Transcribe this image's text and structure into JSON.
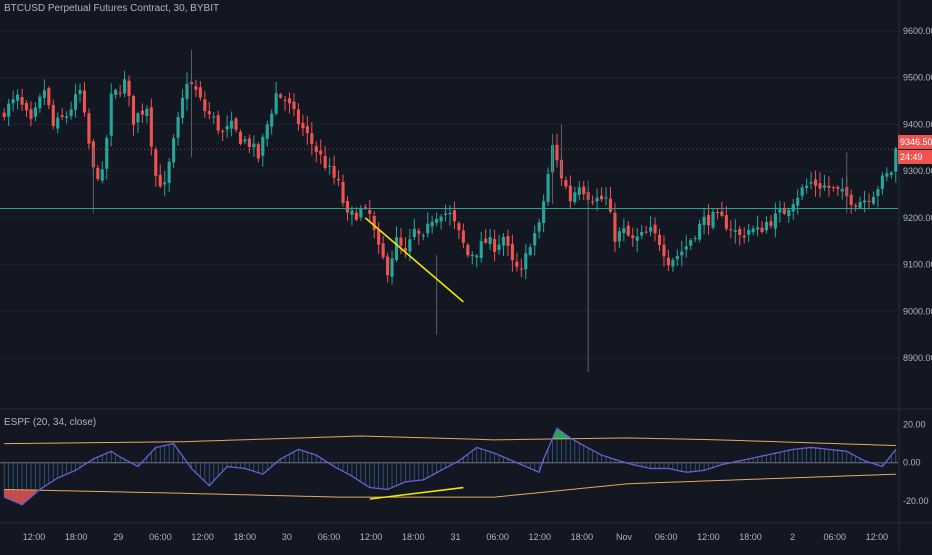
{
  "header": {
    "symbol": "BTCUSD Perpetual Futures Contract, 30, BYBIT",
    "indicator": "ESPF (20, 34, close)"
  },
  "price_tags": {
    "last": "9346.50",
    "countdown": "24:49"
  },
  "colors": {
    "background": "#131722",
    "up": "#26a69a",
    "down": "#ef5350",
    "hline": "#2aa198",
    "trend": "#f5e400",
    "osc_line": "#6a5fd0",
    "band": "#e8a860",
    "fill_up": "#2bbd5e",
    "fill_down": "#e05555"
  },
  "chart_data": [
    {
      "type": "candlestick",
      "title": "BTCUSD Perpetual Futures Contract, 30, BYBIT",
      "ylim": [
        8810,
        9645
      ],
      "y_ticks": [
        "9600.00",
        "9500.00",
        "9400.00",
        "9300.00",
        "9200.00",
        "9100.00",
        "9000.00",
        "8900.00"
      ],
      "y_tick_values": [
        9600,
        9500,
        9400,
        9300,
        9200,
        9100,
        9000,
        8900
      ],
      "x_ticks": [
        "12:00",
        "18:00",
        "29",
        "06:00",
        "12:00",
        "18:00",
        "30",
        "06:00",
        "12:00",
        "18:00",
        "31",
        "06:00",
        "12:00",
        "18:00",
        "Nov",
        "06:00",
        "12:00",
        "18:00",
        "2",
        "06:00",
        "12:00"
      ],
      "horizontal_line": 9220,
      "last_price": 9346.5,
      "path": [
        [
          0,
          9430
        ],
        [
          3,
          9455
        ],
        [
          6,
          9400
        ],
        [
          9,
          9475
        ],
        [
          11,
          9395
        ],
        [
          14,
          9420
        ],
        [
          17,
          9470
        ],
        [
          20,
          9300
        ],
        [
          22,
          9290
        ],
        [
          24,
          9455
        ],
        [
          27,
          9490
        ],
        [
          29,
          9410
        ],
        [
          32,
          9440
        ],
        [
          34,
          9290
        ],
        [
          36,
          9265
        ],
        [
          38,
          9360
        ],
        [
          41,
          9495
        ],
        [
          43,
          9470
        ],
        [
          45,
          9430
        ],
        [
          47,
          9410
        ],
        [
          49,
          9380
        ],
        [
          51,
          9395
        ],
        [
          53,
          9370
        ],
        [
          55,
          9360
        ],
        [
          57,
          9330
        ],
        [
          59,
          9400
        ],
        [
          61,
          9465
        ],
        [
          63,
          9455
        ],
        [
          65,
          9420
        ],
        [
          67,
          9390
        ],
        [
          69,
          9360
        ],
        [
          71,
          9330
        ],
        [
          73,
          9300
        ],
        [
          75,
          9270
        ],
        [
          77,
          9200
        ],
        [
          80,
          9215
        ],
        [
          82,
          9205
        ],
        [
          84,
          9130
        ],
        [
          86,
          9090
        ],
        [
          88,
          9150
        ],
        [
          90,
          9120
        ],
        [
          92,
          9170
        ],
        [
          94,
          9150
        ],
        [
          96,
          9200
        ],
        [
          98,
          9215
        ],
        [
          100,
          9205
        ],
        [
          102,
          9165
        ],
        [
          104,
          9120
        ],
        [
          106,
          9130
        ],
        [
          108,
          9150
        ],
        [
          110,
          9140
        ],
        [
          112,
          9160
        ],
        [
          114,
          9100
        ],
        [
          116,
          9080
        ],
        [
          118,
          9150
        ],
        [
          120,
          9180
        ],
        [
          123,
          9350
        ],
        [
          125,
          9290
        ],
        [
          127,
          9240
        ],
        [
          129,
          9275
        ],
        [
          131,
          9250
        ],
        [
          133,
          9240
        ],
        [
          135,
          9240
        ],
        [
          137,
          9160
        ],
        [
          139,
          9170
        ],
        [
          141,
          9150
        ],
        [
          143,
          9160
        ],
        [
          145,
          9170
        ],
        [
          147,
          9150
        ],
        [
          149,
          9110
        ],
        [
          151,
          9120
        ],
        [
          153,
          9140
        ],
        [
          155,
          9170
        ],
        [
          157,
          9195
        ],
        [
          159,
          9200
        ],
        [
          161,
          9195
        ],
        [
          163,
          9180
        ],
        [
          165,
          9160
        ],
        [
          167,
          9175
        ],
        [
          169,
          9170
        ],
        [
          171,
          9190
        ],
        [
          173,
          9200
        ],
        [
          175,
          9215
        ],
        [
          177,
          9240
        ],
        [
          179,
          9260
        ],
        [
          181,
          9275
        ],
        [
          183,
          9270
        ],
        [
          185,
          9265
        ],
        [
          187,
          9255
        ],
        [
          189,
          9245
        ],
        [
          191,
          9235
        ],
        [
          193,
          9240
        ],
        [
          195,
          9255
        ],
        [
          197,
          9280
        ],
        [
          199,
          9300
        ],
        [
          200,
          9345
        ]
      ],
      "divergence_line": {
        "from": [
          81,
          9200
        ],
        "to": [
          103,
          9020
        ]
      }
    },
    {
      "type": "oscillator",
      "title": "ESPF (20, 34, close)",
      "ylim": [
        -30,
        25
      ],
      "y_ticks": [
        "20.00",
        "0.00",
        "-20.00"
      ],
      "y_tick_values": [
        20,
        0,
        -20
      ],
      "zero_line": 0,
      "upper_band": [
        [
          0,
          10
        ],
        [
          40,
          11
        ],
        [
          80,
          14
        ],
        [
          110,
          12
        ],
        [
          140,
          13
        ],
        [
          160,
          12
        ],
        [
          200,
          9
        ]
      ],
      "lower_band": [
        [
          0,
          -14
        ],
        [
          40,
          -16
        ],
        [
          75,
          -18
        ],
        [
          110,
          -18
        ],
        [
          140,
          -11
        ],
        [
          200,
          -6
        ]
      ],
      "line": [
        [
          0,
          -18
        ],
        [
          4,
          -22
        ],
        [
          8,
          -14
        ],
        [
          12,
          -8
        ],
        [
          16,
          -4
        ],
        [
          20,
          2
        ],
        [
          24,
          6
        ],
        [
          26,
          3
        ],
        [
          30,
          -2
        ],
        [
          34,
          8
        ],
        [
          38,
          10
        ],
        [
          42,
          -3
        ],
        [
          46,
          -12
        ],
        [
          50,
          -2
        ],
        [
          54,
          -3
        ],
        [
          58,
          -6
        ],
        [
          62,
          2
        ],
        [
          66,
          7
        ],
        [
          70,
          4
        ],
        [
          74,
          -2
        ],
        [
          78,
          -7
        ],
        [
          82,
          -13
        ],
        [
          86,
          -14
        ],
        [
          90,
          -10
        ],
        [
          94,
          -9
        ],
        [
          98,
          -4
        ],
        [
          102,
          1
        ],
        [
          106,
          8
        ],
        [
          110,
          5
        ],
        [
          114,
          1
        ],
        [
          118,
          -3
        ],
        [
          120,
          -5
        ],
        [
          121,
          2
        ],
        [
          124,
          18
        ],
        [
          127,
          13
        ],
        [
          130,
          9
        ],
        [
          134,
          4
        ],
        [
          138,
          1
        ],
        [
          141,
          -1
        ],
        [
          145,
          -3
        ],
        [
          149,
          -3
        ],
        [
          153,
          -5
        ],
        [
          157,
          -4
        ],
        [
          161,
          -1
        ],
        [
          165,
          1
        ],
        [
          169,
          3
        ],
        [
          173,
          5
        ],
        [
          177,
          7
        ],
        [
          181,
          8
        ],
        [
          185,
          7
        ],
        [
          189,
          6
        ],
        [
          193,
          1
        ],
        [
          197,
          -2
        ],
        [
          200,
          7
        ]
      ],
      "divergence_line": {
        "from": [
          82,
          -19
        ],
        "to": [
          103,
          -13
        ]
      }
    }
  ]
}
